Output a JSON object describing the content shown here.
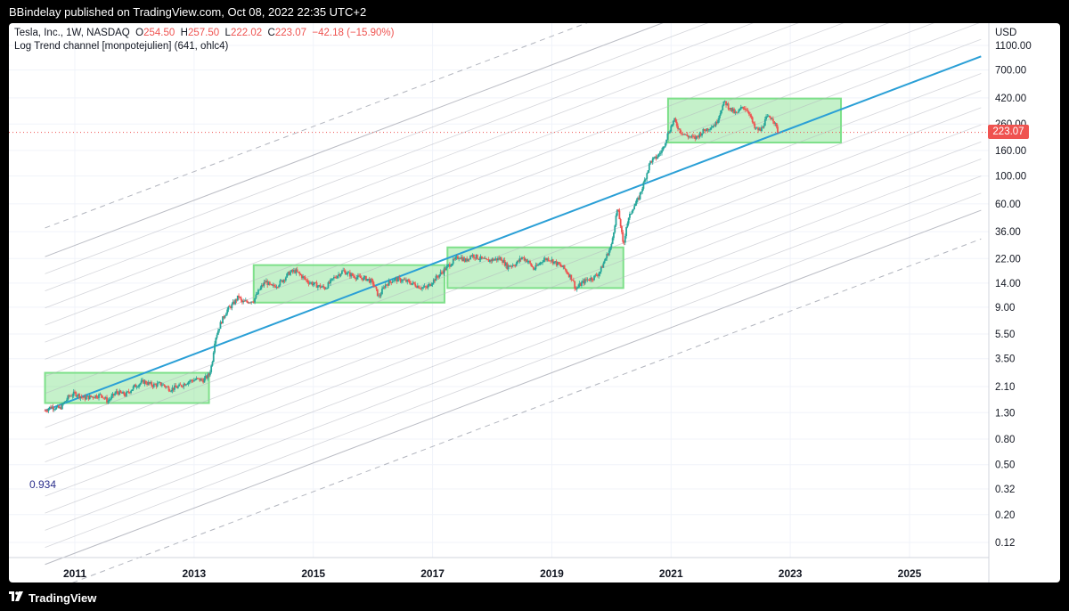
{
  "header": {
    "published": "BBindelay published on TradingView.com, Oct 08, 2022 22:35 UTC+2"
  },
  "legend": {
    "symbol": "Tesla, Inc., 1W, NASDAQ",
    "open_label": "O",
    "open": "254.50",
    "high_label": "H",
    "high": "257.50",
    "low_label": "L",
    "low": "222.02",
    "close_label": "C",
    "close": "223.07",
    "change": "−42.18 (−15.90%)",
    "indicator": "Log Trend channel [monpotejulien] (641, ohlc4)"
  },
  "price_axis": {
    "currency": "USD",
    "current_price": "223.07",
    "channel_start_label": "0.934"
  },
  "footer": {
    "brand": "TradingView"
  },
  "colors": {
    "up": "#26a69a",
    "down": "#ef5350",
    "trend": "#2a9fd6",
    "range_box": "#7ee08a",
    "channel": "#b2b5be",
    "price_tag": "#ef5350"
  },
  "chart_data": {
    "type": "candlestick",
    "title": "Tesla, Inc., 1W, NASDAQ",
    "scale": "log",
    "ylim": [
      0.09,
      1500
    ],
    "xlim": [
      2010.5,
      2026.25
    ],
    "y_ticks": [
      "1100.00",
      "700.00",
      "420.00",
      "260.00",
      "160.00",
      "100.00",
      "60.00",
      "36.00",
      "22.00",
      "14.00",
      "9.00",
      "5.50",
      "3.50",
      "2.10",
      "1.30",
      "0.80",
      "0.50",
      "0.32",
      "0.20",
      "0.12"
    ],
    "x_ticks": [
      "2011",
      "2013",
      "2015",
      "2017",
      "2019",
      "2021",
      "2023",
      "2025"
    ],
    "last_price": 223.07,
    "trend_channel": {
      "start": 2010.5,
      "end": 2026.2,
      "center_start": 1.35,
      "center_end": 900
    },
    "range_boxes": [
      {
        "x0": 2010.5,
        "x1": 2013.25,
        "y0": 1.55,
        "y1": 2.7
      },
      {
        "x0": 2014.0,
        "x1": 2017.2,
        "y0": 9.8,
        "y1": 19.5
      },
      {
        "x0": 2017.25,
        "x1": 2020.2,
        "y0": 12.8,
        "y1": 27
      },
      {
        "x0": 2020.95,
        "x1": 2023.85,
        "y0": 185,
        "y1": 415
      }
    ],
    "price_path": [
      [
        2010.5,
        1.35
      ],
      [
        2010.6,
        1.45
      ],
      [
        2010.75,
        1.4
      ],
      [
        2010.9,
        1.75
      ],
      [
        2011.0,
        1.85
      ],
      [
        2011.15,
        1.7
      ],
      [
        2011.3,
        1.75
      ],
      [
        2011.45,
        1.8
      ],
      [
        2011.55,
        1.6
      ],
      [
        2011.7,
        1.9
      ],
      [
        2011.85,
        1.8
      ],
      [
        2012.0,
        2.1
      ],
      [
        2012.15,
        2.3
      ],
      [
        2012.3,
        2.15
      ],
      [
        2012.45,
        2.2
      ],
      [
        2012.6,
        2.0
      ],
      [
        2012.75,
        2.1
      ],
      [
        2012.9,
        2.3
      ],
      [
        2013.05,
        2.4
      ],
      [
        2013.15,
        2.35
      ],
      [
        2013.25,
        2.6
      ],
      [
        2013.3,
        3.2
      ],
      [
        2013.35,
        5.0
      ],
      [
        2013.45,
        6.8
      ],
      [
        2013.55,
        8.5
      ],
      [
        2013.65,
        9.5
      ],
      [
        2013.75,
        11.0
      ],
      [
        2013.8,
        9.8
      ],
      [
        2013.9,
        10.0
      ],
      [
        2014.0,
        10.2
      ],
      [
        2014.1,
        12.5
      ],
      [
        2014.2,
        14.5
      ],
      [
        2014.3,
        13.0
      ],
      [
        2014.4,
        13.6
      ],
      [
        2014.5,
        15.0
      ],
      [
        2014.6,
        17.0
      ],
      [
        2014.7,
        17.5
      ],
      [
        2014.8,
        16.0
      ],
      [
        2014.9,
        14.5
      ],
      [
        2015.0,
        13.8
      ],
      [
        2015.1,
        13.2
      ],
      [
        2015.2,
        12.8
      ],
      [
        2015.35,
        15.5
      ],
      [
        2015.5,
        17.5
      ],
      [
        2015.6,
        16.5
      ],
      [
        2015.75,
        15.5
      ],
      [
        2015.9,
        15.2
      ],
      [
        2016.0,
        14.0
      ],
      [
        2016.1,
        10.8
      ],
      [
        2016.2,
        13.5
      ],
      [
        2016.35,
        15.0
      ],
      [
        2016.5,
        14.8
      ],
      [
        2016.65,
        14.0
      ],
      [
        2016.8,
        13.0
      ],
      [
        2016.9,
        12.8
      ],
      [
        2017.0,
        14.5
      ],
      [
        2017.15,
        17.0
      ],
      [
        2017.3,
        20.0
      ],
      [
        2017.45,
        23.0
      ],
      [
        2017.55,
        21.0
      ],
      [
        2017.65,
        23.5
      ],
      [
        2017.75,
        22.5
      ],
      [
        2017.9,
        21.0
      ],
      [
        2018.0,
        21.5
      ],
      [
        2018.15,
        22.0
      ],
      [
        2018.25,
        19.0
      ],
      [
        2018.4,
        20.0
      ],
      [
        2018.5,
        22.5
      ],
      [
        2018.6,
        21.0
      ],
      [
        2018.7,
        18.0
      ],
      [
        2018.85,
        21.5
      ],
      [
        2018.95,
        22.0
      ],
      [
        2019.05,
        20.5
      ],
      [
        2019.2,
        18.5
      ],
      [
        2019.35,
        15.0
      ],
      [
        2019.4,
        12.5
      ],
      [
        2019.5,
        14.0
      ],
      [
        2019.6,
        15.0
      ],
      [
        2019.7,
        15.5
      ],
      [
        2019.8,
        17.0
      ],
      [
        2019.9,
        22.0
      ],
      [
        2020.0,
        28.0
      ],
      [
        2020.05,
        40.0
      ],
      [
        2020.1,
        55.0
      ],
      [
        2020.15,
        42.0
      ],
      [
        2020.2,
        27.0
      ],
      [
        2020.25,
        40.0
      ],
      [
        2020.35,
        55.0
      ],
      [
        2020.45,
        65.0
      ],
      [
        2020.55,
        90.0
      ],
      [
        2020.65,
        130.0
      ],
      [
        2020.75,
        140.0
      ],
      [
        2020.85,
        160.0
      ],
      [
        2020.95,
        220.0
      ],
      [
        2021.05,
        280.0
      ],
      [
        2021.15,
        230.0
      ],
      [
        2021.25,
        210.0
      ],
      [
        2021.4,
        200.0
      ],
      [
        2021.55,
        230.0
      ],
      [
        2021.65,
        245.0
      ],
      [
        2021.75,
        260.0
      ],
      [
        2021.85,
        350.0
      ],
      [
        2021.9,
        390.0
      ],
      [
        2022.0,
        340.0
      ],
      [
        2022.1,
        310.0
      ],
      [
        2022.2,
        360.0
      ],
      [
        2022.3,
        330.0
      ],
      [
        2022.4,
        240.0
      ],
      [
        2022.5,
        230.0
      ],
      [
        2022.6,
        290.0
      ],
      [
        2022.7,
        295.0
      ],
      [
        2022.77,
        240.0
      ],
      [
        2022.8,
        223.07
      ]
    ]
  }
}
